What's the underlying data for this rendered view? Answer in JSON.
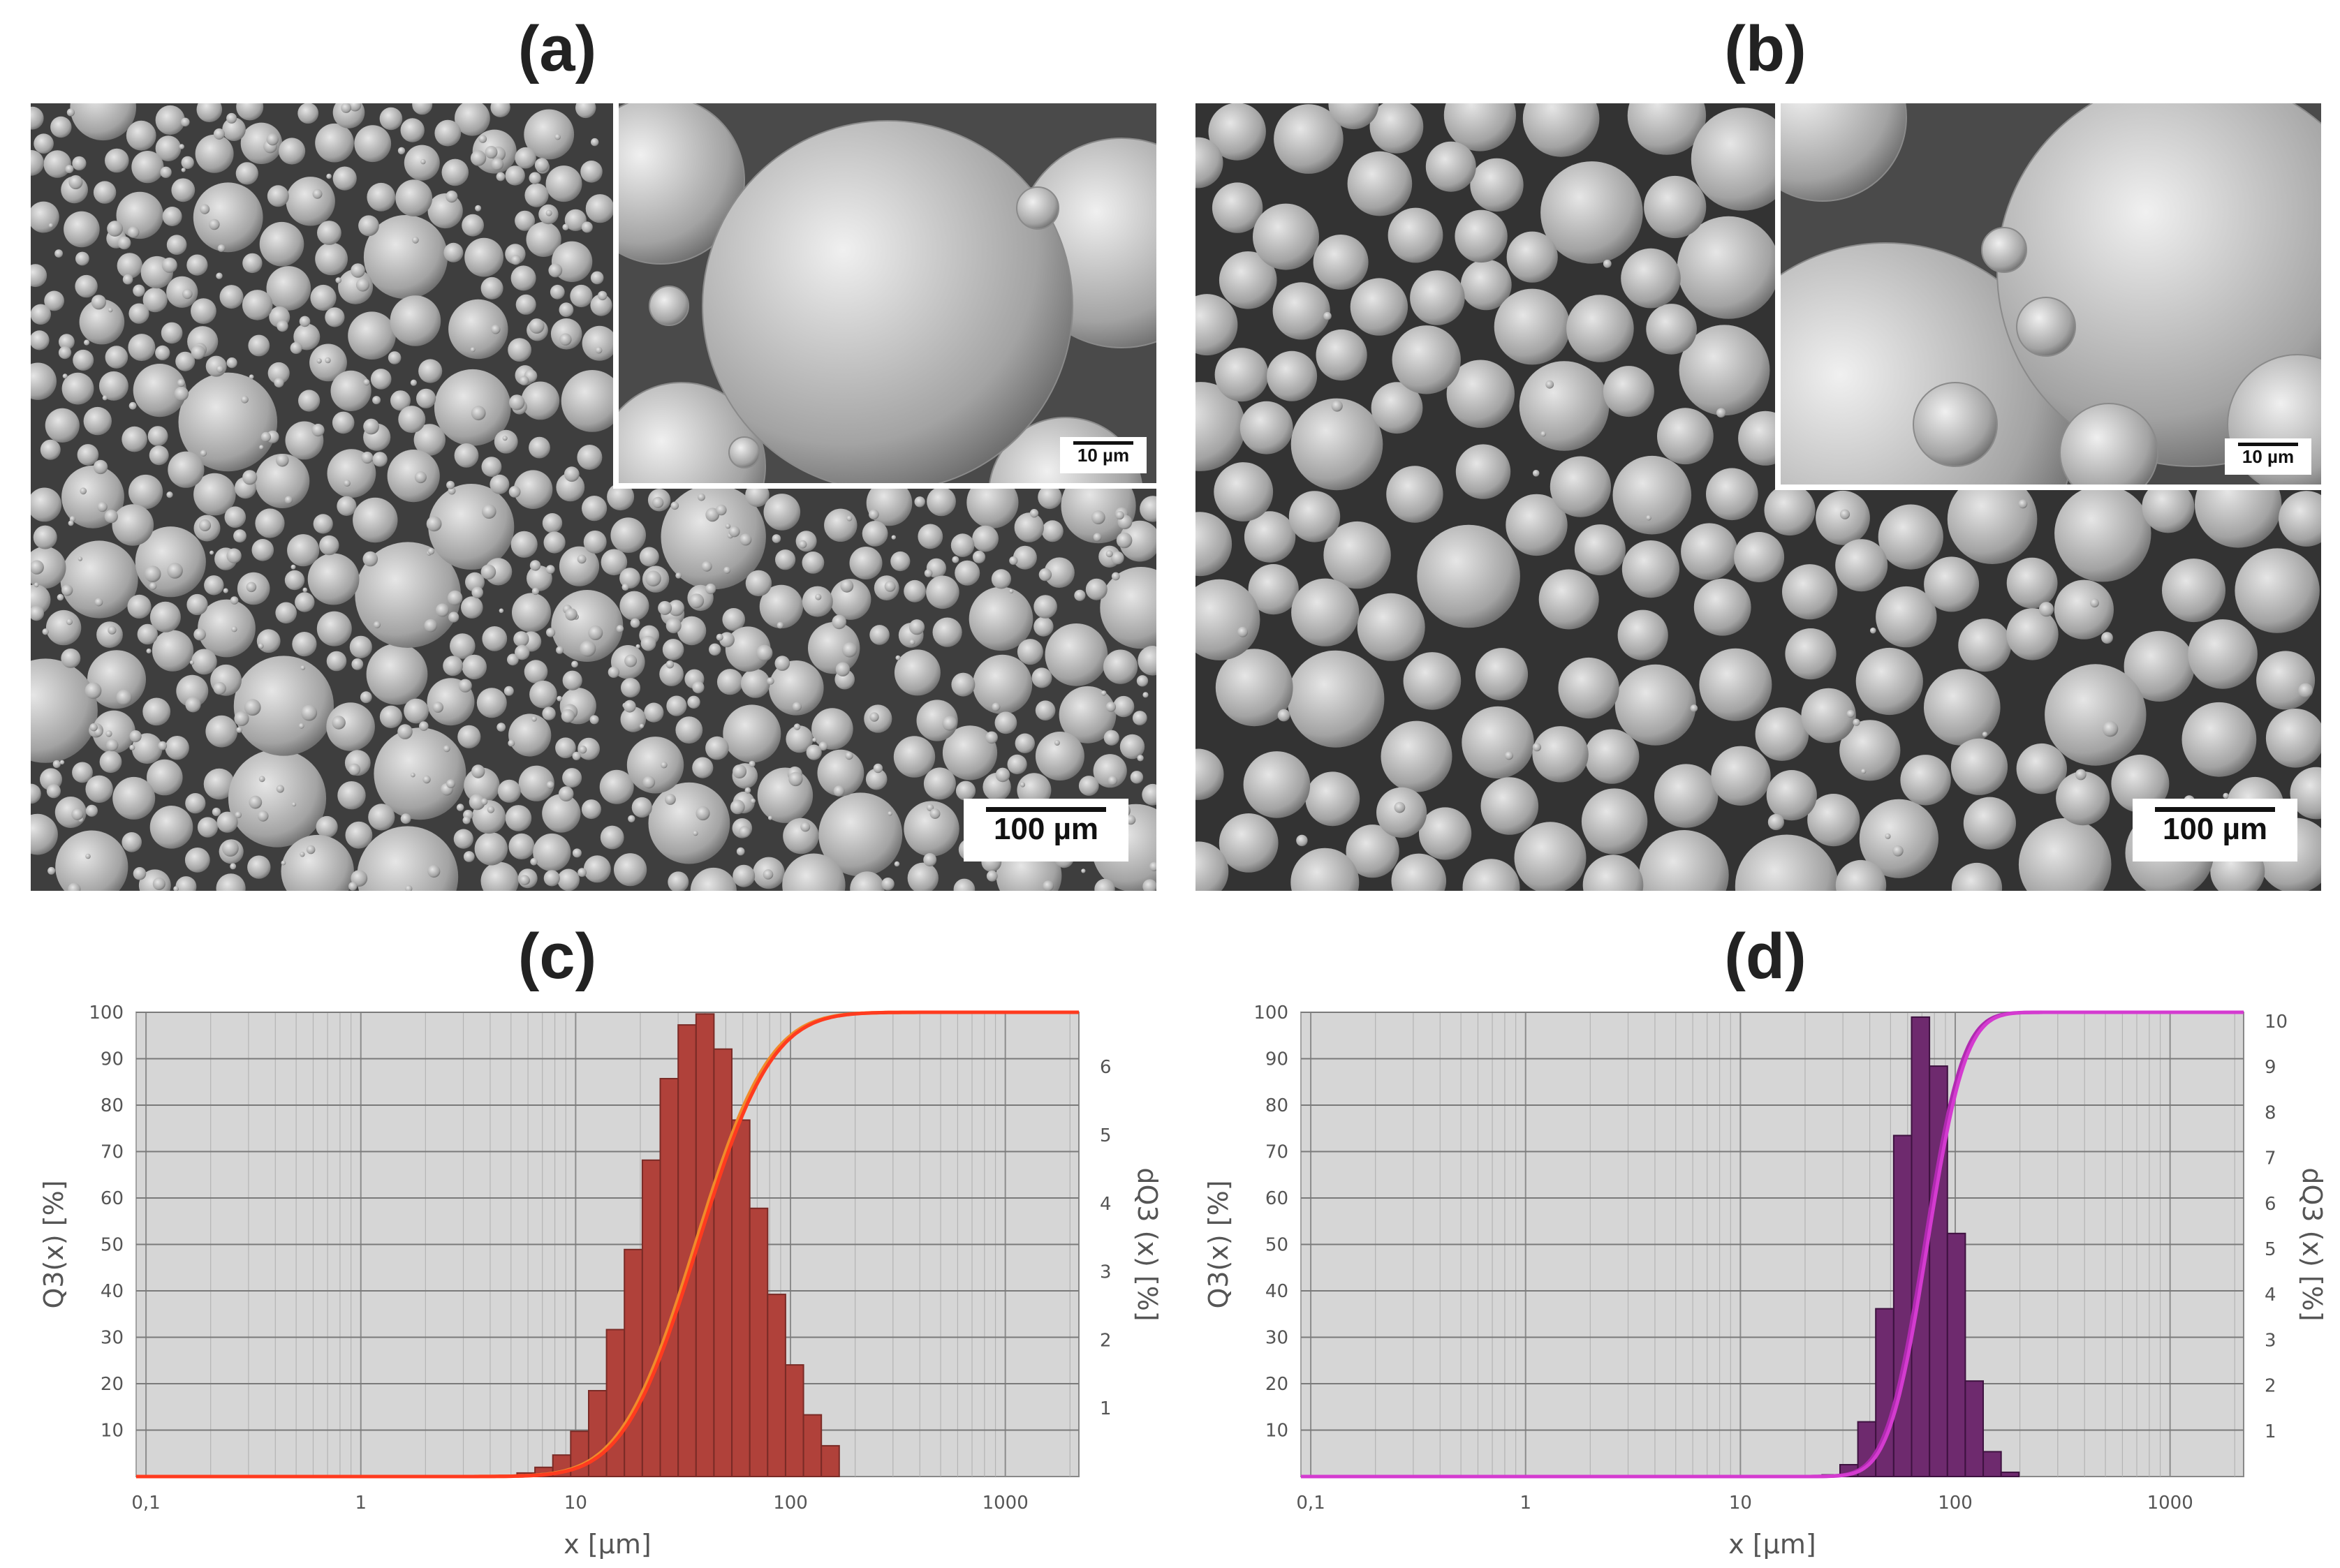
{
  "panels": {
    "a": {
      "label": "(a)",
      "scale_main": "100 µm",
      "scale_inset": "10 µm"
    },
    "b": {
      "label": "(b)",
      "scale_main": "100 µm",
      "scale_inset": "10 µm"
    },
    "c": {
      "label": "(c)"
    },
    "d": {
      "label": "(d)"
    }
  },
  "chart_data": [
    {
      "type": "bar",
      "panel": "c",
      "title": "",
      "xlabel": "x [µm]",
      "ylabel": "Q3(x) [%]",
      "y2label": "dQ3 (x) [%]",
      "xscale": "log",
      "xlim": [
        0.09,
        2200
      ],
      "ylim": [
        0,
        100
      ],
      "y2lim": [
        0,
        6.8
      ],
      "x_ticks": [
        "0,1",
        "1",
        "10",
        "100",
        "1000"
      ],
      "y_ticks": [
        10,
        20,
        30,
        40,
        50,
        60,
        70,
        80,
        90,
        100
      ],
      "y2_ticks": [
        1,
        2,
        3,
        4,
        5,
        6
      ],
      "grid": true,
      "colors": {
        "bars": "#b0413a",
        "bar_edge": "#7a2b26",
        "curve": "#ff3b1f",
        "curve2": "#f08a2a",
        "plot_bg": "#d6d6d6"
      },
      "distribution": {
        "mode_um": 38,
        "log_sigma": 0.26,
        "peak_density_pct": 6.8,
        "x_min_um": 3,
        "x_max_um": 140
      },
      "cumulative": {
        "x50_um": 36,
        "log_sigma": 0.27
      }
    },
    {
      "type": "bar",
      "panel": "d",
      "title": "",
      "xlabel": "x [µm]",
      "ylabel": "Q3(x) [%]",
      "y2label": "dQ3 (x) [%]",
      "xscale": "log",
      "xlim": [
        0.09,
        2200
      ],
      "ylim": [
        0,
        100
      ],
      "y2lim": [
        0,
        10.2
      ],
      "x_ticks": [
        "0,1",
        "1",
        "10",
        "100",
        "1000"
      ],
      "y_ticks": [
        10,
        20,
        30,
        40,
        50,
        60,
        70,
        80,
        90,
        100
      ],
      "y2_ticks": [
        1,
        2,
        3,
        4,
        5,
        6,
        7,
        8,
        9,
        10
      ],
      "grid": true,
      "colors": {
        "bars": "#6e2a6e",
        "bar_edge": "#3e1240",
        "curve": "#d43bd0",
        "curve2": "#b02ab0",
        "plot_bg": "#d6d6d6"
      },
      "distribution": {
        "mode_um": 72,
        "log_sigma": 0.13,
        "peak_density_pct": 10.2,
        "x_min_um": 24,
        "x_max_um": 175
      },
      "cumulative": {
        "x50_um": 72,
        "log_sigma": 0.14
      }
    }
  ]
}
